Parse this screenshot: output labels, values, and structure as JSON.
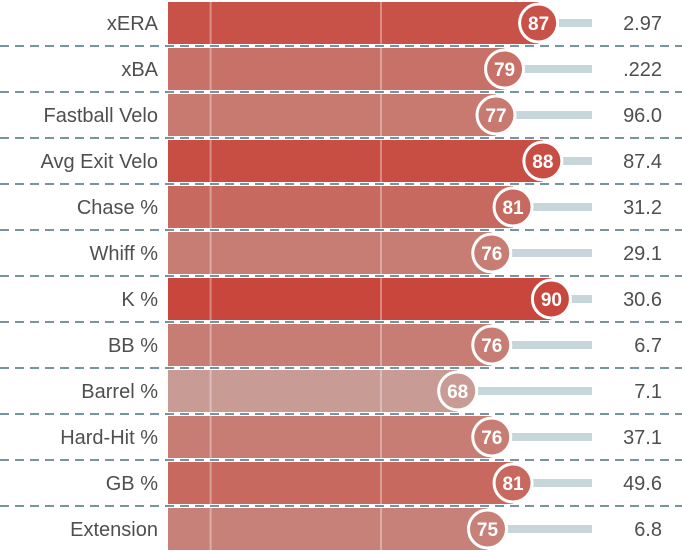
{
  "chart_data": {
    "type": "bar",
    "orientation": "horizontal",
    "categories": [
      "xERA",
      "xBA",
      "Fastball Velo",
      "Avg Exit Velo",
      "Chase %",
      "Whiff %",
      "K %",
      "BB %",
      "Barrel %",
      "Hard-Hit %",
      "GB %",
      "Extension"
    ],
    "values": [
      87,
      79,
      77,
      88,
      81,
      76,
      90,
      76,
      68,
      76,
      81,
      75
    ],
    "stat_values": [
      "2.97",
      ".222",
      "96.0",
      "87.4",
      "31.2",
      "29.1",
      "30.6",
      "6.7",
      "7.1",
      "37.1",
      "49.6",
      "6.8"
    ],
    "xlim": [
      0,
      100
    ],
    "reference_lines": [
      10,
      50,
      90
    ],
    "title": "",
    "xlabel": "",
    "ylabel": "",
    "colors": {
      "low": "#c8a49c",
      "high": "#c8463c",
      "track": "#c7d6da",
      "separator": "#4a7282",
      "marker_border": "#ffffff"
    }
  }
}
